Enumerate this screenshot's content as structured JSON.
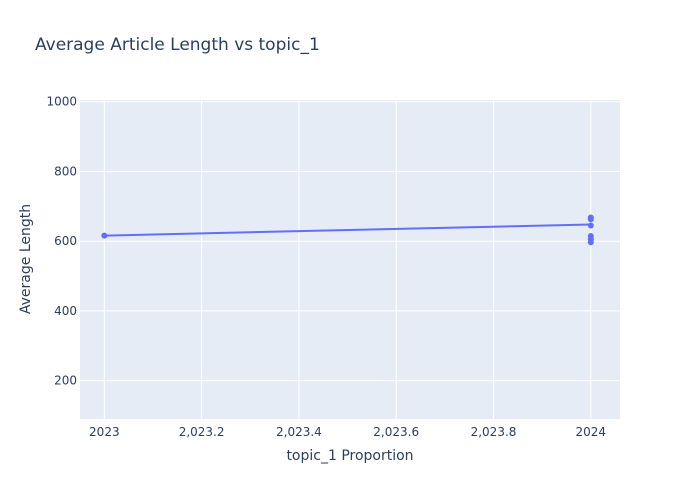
{
  "chart_data": {
    "type": "scatter",
    "title": "Average Article Length vs topic_1",
    "xlabel": "topic_1 Proportion",
    "ylabel": "Average Length",
    "xlim": [
      2022.95,
      2024.06
    ],
    "ylim": [
      90,
      1005
    ],
    "x_ticks": [
      2023,
      2023.2,
      2023.4,
      2023.6,
      2023.8,
      2024
    ],
    "x_tick_labels": [
      "2023",
      "2,023.2",
      "2,023.4",
      "2,023.6",
      "2,023.8",
      "2024"
    ],
    "y_ticks": [
      200,
      400,
      600,
      800,
      1000
    ],
    "y_tick_labels": [
      "200",
      "400",
      "600",
      "800",
      "1000"
    ],
    "grid": true,
    "colors": {
      "series": "#636efa",
      "plot_bg": "#e5ecf6",
      "grid": "#ffffff",
      "text": "#2a3f5f"
    },
    "series": [
      {
        "mode": "markers",
        "x": [
          2023,
          2024,
          2024,
          2024,
          2024,
          2024,
          2024
        ],
        "y": [
          616,
          668,
          663,
          645,
          615,
          606,
          597
        ]
      },
      {
        "mode": "line",
        "x": [
          2023,
          2024
        ],
        "y": [
          616,
          648
        ]
      }
    ]
  }
}
